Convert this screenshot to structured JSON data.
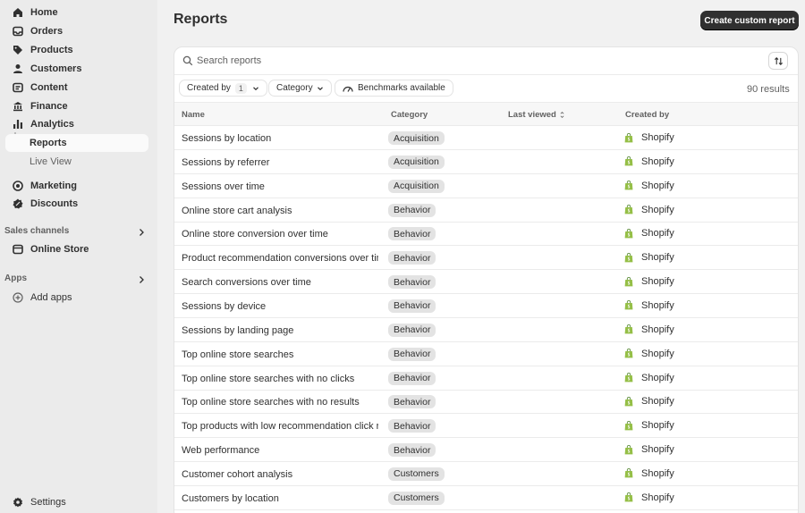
{
  "sidebar": {
    "items": [
      {
        "label": "Home",
        "icon": "home-icon"
      },
      {
        "label": "Orders",
        "icon": "orders-icon"
      },
      {
        "label": "Products",
        "icon": "tag-icon"
      },
      {
        "label": "Customers",
        "icon": "person-icon"
      },
      {
        "label": "Content",
        "icon": "content-icon"
      },
      {
        "label": "Finance",
        "icon": "bank-icon"
      },
      {
        "label": "Analytics",
        "icon": "bar-chart-icon"
      }
    ],
    "analytics_sub": [
      "Reports",
      "Live View"
    ],
    "items2": [
      {
        "label": "Marketing",
        "icon": "target-icon"
      },
      {
        "label": "Discounts",
        "icon": "discount-icon"
      }
    ],
    "sales_channels_label": "Sales channels",
    "online_store": "Online Store",
    "apps_label": "Apps",
    "add_apps": "Add apps",
    "settings": "Settings"
  },
  "header": {
    "title": "Reports",
    "create_button": "Create custom report"
  },
  "search": {
    "placeholder": "Search reports"
  },
  "filters": {
    "created_by": "Created by",
    "created_by_count": "1",
    "category": "Category",
    "benchmarks": "Benchmarks available",
    "results": "90 results"
  },
  "table": {
    "columns": [
      "Name",
      "Category",
      "Last viewed",
      "Created by"
    ],
    "rows": [
      {
        "name": "Sessions by location",
        "category": "Acquisition",
        "created_by": "Shopify"
      },
      {
        "name": "Sessions by referrer",
        "category": "Acquisition",
        "created_by": "Shopify"
      },
      {
        "name": "Sessions over time",
        "category": "Acquisition",
        "created_by": "Shopify"
      },
      {
        "name": "Online store cart analysis",
        "category": "Behavior",
        "created_by": "Shopify"
      },
      {
        "name": "Online store conversion over time",
        "category": "Behavior",
        "created_by": "Shopify"
      },
      {
        "name": "Product recommendation conversions over time",
        "category": "Behavior",
        "created_by": "Shopify"
      },
      {
        "name": "Search conversions over time",
        "category": "Behavior",
        "created_by": "Shopify"
      },
      {
        "name": "Sessions by device",
        "category": "Behavior",
        "created_by": "Shopify"
      },
      {
        "name": "Sessions by landing page",
        "category": "Behavior",
        "created_by": "Shopify"
      },
      {
        "name": "Top online store searches",
        "category": "Behavior",
        "created_by": "Shopify"
      },
      {
        "name": "Top online store searches with no clicks",
        "category": "Behavior",
        "created_by": "Shopify"
      },
      {
        "name": "Top online store searches with no results",
        "category": "Behavior",
        "created_by": "Shopify"
      },
      {
        "name": "Top products with low recommendation click rate",
        "category": "Behavior",
        "created_by": "Shopify"
      },
      {
        "name": "Web performance",
        "category": "Behavior",
        "created_by": "Shopify"
      },
      {
        "name": "Customer cohort analysis",
        "category": "Customers",
        "created_by": "Shopify"
      },
      {
        "name": "Customers by location",
        "category": "Customers",
        "created_by": "Shopify"
      }
    ]
  },
  "colors": {
    "shopify_green": "#95bf47",
    "dark_button": "#303030"
  }
}
